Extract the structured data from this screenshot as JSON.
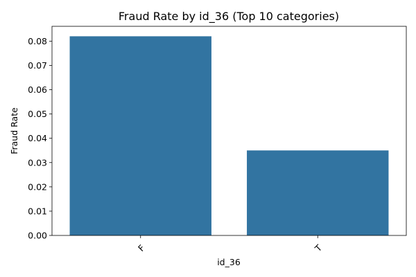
{
  "chart_data": {
    "type": "bar",
    "title": "Fraud Rate by id_36 (Top 10 categories)",
    "xlabel": "id_36",
    "ylabel": "Fraud Rate",
    "categories": [
      "F",
      "T"
    ],
    "values": [
      0.082,
      0.035
    ],
    "ylim": [
      0,
      0.0861
    ],
    "yticks": [
      0.0,
      0.01,
      0.02,
      0.03,
      0.04,
      0.05,
      0.06,
      0.07,
      0.08
    ],
    "ytick_labels": [
      "0.00",
      "0.01",
      "0.02",
      "0.03",
      "0.04",
      "0.05",
      "0.06",
      "0.07",
      "0.08"
    ],
    "xtick_rotation": 45,
    "bar_color": "#3274a1",
    "grid": false,
    "legend": "none"
  }
}
